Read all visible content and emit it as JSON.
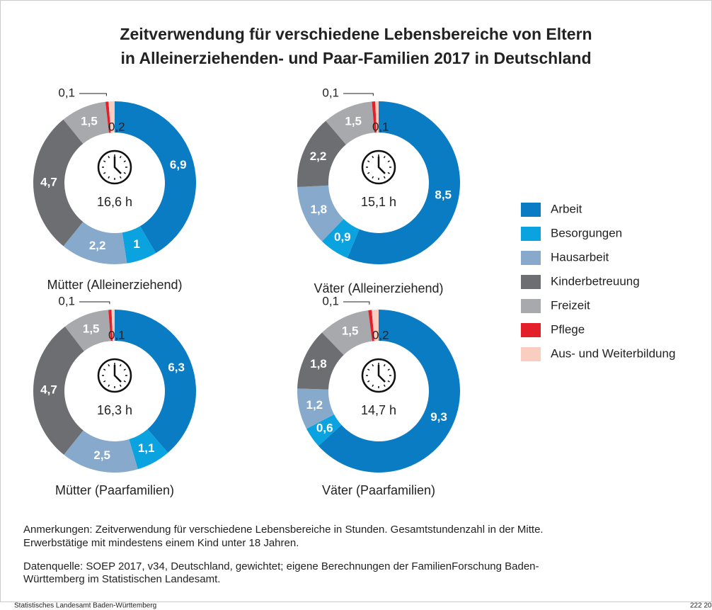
{
  "title": [
    "Zeitverwendung für verschiedene Lebensbereiche von Eltern",
    "in Alleinerziehenden- und Paar-Familien 2017 in Deutschland"
  ],
  "legend": {
    "categories": [
      "Arbeit",
      "Besorgungen",
      "Hausarbeit",
      "Kinderbetreuung",
      "Freizeit",
      "Pflege",
      "Aus- und Weiterbildung"
    ],
    "colors": [
      "#0a7cc4",
      "#0aa3e0",
      "#86a9cc",
      "#6d6e71",
      "#a7a9ac",
      "#e3202a",
      "#f9cdbf"
    ]
  },
  "chart_data": [
    {
      "type": "donut",
      "values": [
        6.9,
        1,
        2.2,
        4.7,
        1.5,
        0.1,
        0.2
      ],
      "value_labels": [
        "6,9",
        "1",
        "2,2",
        "4,7",
        "1,5",
        "0,1",
        "0,2"
      ],
      "center_label": "16,6 h",
      "caption": "Mütter (Alleinerziehend)"
    },
    {
      "type": "donut",
      "values": [
        8.5,
        0.9,
        1.8,
        2.2,
        1.5,
        0.1,
        0.1
      ],
      "value_labels": [
        "8,5",
        "0,9",
        "1,8",
        "2,2",
        "1,5",
        "0,1",
        "0,1"
      ],
      "center_label": "15,1 h",
      "caption": "Väter (Alleinerziehend)"
    },
    {
      "type": "donut",
      "values": [
        6.3,
        1.1,
        2.5,
        4.7,
        1.5,
        0.1,
        0.1
      ],
      "value_labels": [
        "6,3",
        "1,1",
        "2,5",
        "4,7",
        "1,5",
        "0,1",
        "0,1"
      ],
      "center_label": "16,3 h",
      "caption": "Mütter (Paarfamilien)"
    },
    {
      "type": "donut",
      "values": [
        9.3,
        0.6,
        1.2,
        1.8,
        1.5,
        0.1,
        0.2
      ],
      "value_labels": [
        "9,3",
        "0,6",
        "1,2",
        "1,8",
        "1,5",
        "0,1",
        "0,2"
      ],
      "center_label": "14,7 h",
      "caption": "Väter (Paarfamilien)"
    }
  ],
  "notes": [
    "Anmerkungen: Zeitverwendung für verschiedene Lebensbereiche in Stunden. Gesamtstundenzahl in der Mitte.",
    "Erwerbstätige mit mindestens einem Kind unter 18 Jahren.",
    "Datenquelle: SOEP 2017, v34, Deutschland, gewichtet; eigene Berechnungen der FamilienForschung Baden-",
    "Württemberg im Statistischen Landesamt."
  ],
  "footer": {
    "left": "Statistisches Landesamt Baden-Württemberg",
    "right": "222 20"
  }
}
